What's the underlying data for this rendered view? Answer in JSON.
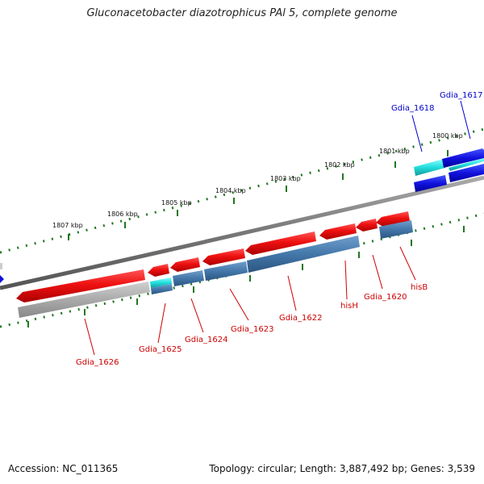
{
  "title": "Gluconacetobacter diazotrophicus PAl 5, complete genome",
  "footer": {
    "accession": "Accession: NC_011365",
    "summary": "Topology: circular; Length: 3,887,492 bp; Genes: 3,539"
  },
  "scale_labels": [
    "1807 kbp",
    "1806 kbp",
    "1805 kbp",
    "1804 kbp",
    "1803 kbp",
    "1802 kbp",
    "1801 kbp",
    "1800 kbp"
  ],
  "gene_labels": {
    "gdia_1626": "Gdia_1626",
    "gdia_1625": "Gdia_1625",
    "gdia_1624": "Gdia_1624",
    "gdia_1623": "Gdia_1623",
    "gdia_1622": "Gdia_1622",
    "hisH": "hisH",
    "gdia_1620": "Gdia_1620",
    "hisB": "hisB",
    "gdia_1618": "Gdia_1618",
    "gdia_1617": "Gdia_1617"
  },
  "colors": {
    "cds_red": "#ee1111",
    "feature_steelblue": "#4477aa",
    "feature_cyan": "#33dddd",
    "cds_blue": "#1111dd",
    "feature_gray": "#aaaaaa",
    "backbone": "#777777",
    "tick_green": "#227722",
    "label_red": "#cc0000",
    "label_blue": "#0000cc"
  }
}
